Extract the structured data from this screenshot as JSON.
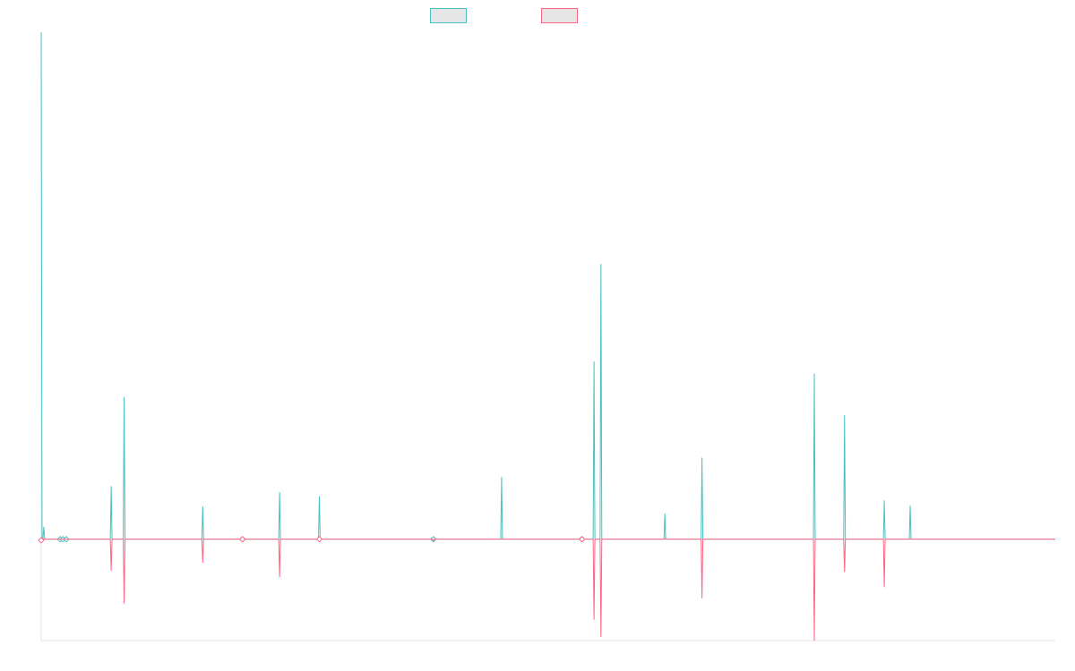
{
  "chart_data": {
    "type": "line",
    "title": "",
    "xlabel": "",
    "ylabel": "",
    "legend": {
      "placement": "top-center",
      "entries": [
        "",
        ""
      ]
    },
    "grid": false,
    "x_points": 1175,
    "ylim": [
      -1.0,
      5.0
    ],
    "series": [
      {
        "name": "",
        "color": "#4bc0c0",
        "spikes": [
          [
            0,
            5.0
          ],
          [
            3,
            0.12
          ],
          [
            22,
            0.0
          ],
          [
            25,
            0.0
          ],
          [
            29,
            0.0
          ],
          [
            81,
            0.52
          ],
          [
            96,
            1.4
          ],
          [
            187,
            0.32
          ],
          [
            233,
            0.0
          ],
          [
            276,
            0.46
          ],
          [
            322,
            0.42
          ],
          [
            454,
            0.0
          ],
          [
            533,
            0.61
          ],
          [
            626,
            0.0
          ],
          [
            640,
            1.75
          ],
          [
            648,
            2.71
          ],
          [
            722,
            0.25
          ],
          [
            765,
            0.8
          ],
          [
            895,
            1.63
          ],
          [
            930,
            1.22
          ],
          [
            976,
            0.38
          ],
          [
            1006,
            0.33
          ]
        ]
      },
      {
        "name": "",
        "color": "#ff6384",
        "spikes": [
          [
            0,
            -0.01
          ],
          [
            81,
            -0.31
          ],
          [
            96,
            -0.63
          ],
          [
            187,
            -0.23
          ],
          [
            233,
            0.0
          ],
          [
            276,
            -0.37
          ],
          [
            322,
            0.0
          ],
          [
            454,
            -0.02
          ],
          [
            626,
            0.0
          ],
          [
            640,
            -0.79
          ],
          [
            648,
            -0.96
          ],
          [
            765,
            -0.58
          ],
          [
            895,
            -1.0
          ],
          [
            930,
            -0.32
          ],
          [
            976,
            -0.47
          ]
        ]
      }
    ]
  }
}
